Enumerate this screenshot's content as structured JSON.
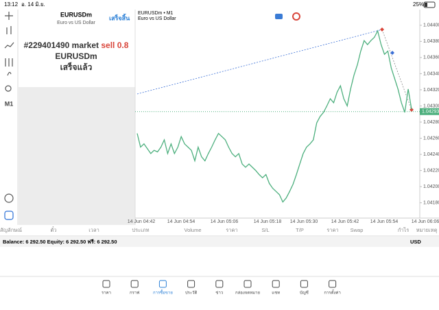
{
  "status_bar": {
    "time": "13:12",
    "date": "อ. 14 มิ.ย.",
    "battery": "25%"
  },
  "toolbar": {
    "timeframe": "M1"
  },
  "order_panel": {
    "symbol": "EURUSDm",
    "description": "Euro vs US Dollar",
    "done_button": "เสร็จสิ้น",
    "order_text": "#229401490 market",
    "order_side": "sell 0.8",
    "order_symbol": "EURUSDm",
    "order_status": "เสร็จแล้ว"
  },
  "chart": {
    "title": "EURUSDm • M1",
    "subtitle": "Euro vs US Dollar",
    "current_price": 1.04293,
    "ylim": [
      1.04161,
      1.04416
    ],
    "yticks": [
      {
        "value": 1.044,
        "label": "1.04400"
      },
      {
        "value": 1.0438,
        "label": "1.04380"
      },
      {
        "value": 1.0436,
        "label": "1.04360"
      },
      {
        "value": 1.0434,
        "label": "1.04340"
      },
      {
        "value": 1.0432,
        "label": "1.04320"
      },
      {
        "value": 1.043,
        "label": "1.04300"
      },
      {
        "value": 1.0428,
        "label": "1.04280"
      },
      {
        "value": 1.0426,
        "label": "1.04260"
      },
      {
        "value": 1.0424,
        "label": "1.04240"
      },
      {
        "value": 1.0422,
        "label": "1.04220"
      },
      {
        "value": 1.042,
        "label": "1.04200"
      },
      {
        "value": 1.0418,
        "label": "1.04180"
      }
    ],
    "x_labels": [
      "14 Jun 04:42",
      "14 Jun 04:54",
      "14 Jun 05:06",
      "14 Jun 05:18",
      "14 Jun 05:30",
      "14 Jun 05:42",
      "14 Jun 05:54",
      "14 Jun 06:06"
    ],
    "color": "#4caf7d",
    "values": [
      1.04266,
      1.04249,
      1.04253,
      1.04247,
      1.04241,
      1.04245,
      1.04243,
      1.04249,
      1.04258,
      1.04241,
      1.04253,
      1.04241,
      1.04249,
      1.04262,
      1.04253,
      1.04249,
      1.04245,
      1.04232,
      1.04249,
      1.04237,
      1.04232,
      1.04241,
      1.04249,
      1.04258,
      1.04266,
      1.04262,
      1.04258,
      1.04249,
      1.04241,
      1.04237,
      1.04241,
      1.04228,
      1.04224,
      1.04228,
      1.04224,
      1.0422,
      1.04215,
      1.04211,
      1.04215,
      1.04204,
      1.04198,
      1.04194,
      1.0419,
      1.04181,
      1.04186,
      1.04194,
      1.04203,
      1.04215,
      1.04228,
      1.04241,
      1.04249,
      1.04253,
      1.04258,
      1.04279,
      1.04287,
      1.04292,
      1.043,
      1.04309,
      1.04304,
      1.04317,
      1.04325,
      1.04309,
      1.043,
      1.04321,
      1.04338,
      1.04351,
      1.04368,
      1.04381,
      1.04376,
      1.04381,
      1.04385,
      1.04393,
      1.04376,
      1.04364,
      1.04368,
      1.04347,
      1.04334,
      1.04321,
      1.04304,
      1.04292,
      1.04321,
      1.04296
    ]
  },
  "columns": [
    "สัญลักษณ์",
    "ตั๋ว",
    "เวลา",
    "ประเภท",
    "Volume",
    "ราคา",
    "S/L",
    "T/P",
    "ราคา",
    "Swap",
    "กำไร",
    "หมายเหตุ"
  ],
  "balance": {
    "text": "Balance: 6 292.50 Equity: 6 292.50 ฟรี: 6 292.50",
    "currency": "USD"
  },
  "nav": [
    "ราคา",
    "กราฟ",
    "การซื้อขาย",
    "ประวัติ",
    "ข่าว",
    "กล่องจดหมาย",
    "แชท",
    "บัญชี",
    "การตั้งค่า"
  ]
}
